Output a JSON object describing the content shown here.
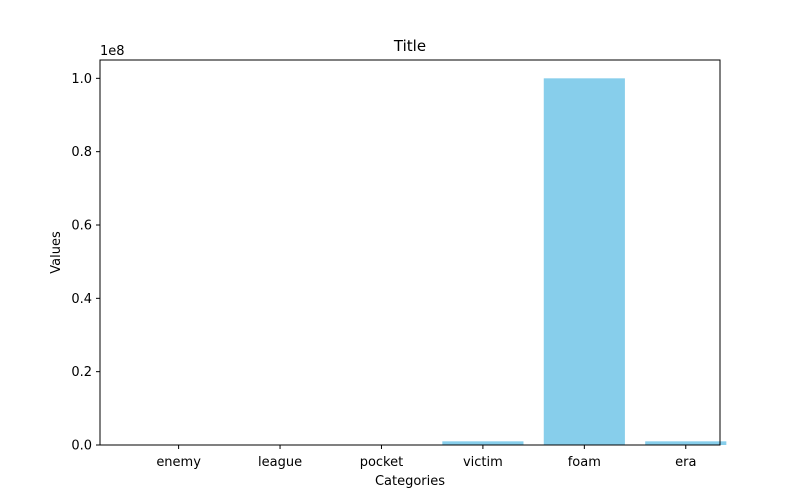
{
  "chart_data": {
    "type": "bar",
    "title": "Title",
    "xlabel": "Categories",
    "ylabel": "Values",
    "offset_text": "1e8",
    "categories": [
      "enemy",
      "league",
      "pocket",
      "victim",
      "foam",
      "era"
    ],
    "values": [
      0,
      0,
      0,
      1000000,
      100000000,
      1000000
    ],
    "ylim": [
      0,
      105000000
    ],
    "y_ticks": [
      0,
      20000000,
      40000000,
      60000000,
      80000000,
      100000000
    ],
    "y_tick_labels": [
      "0.0",
      "0.2",
      "0.4",
      "0.6",
      "0.8",
      "1.0"
    ],
    "bar_color": "#87ceeb",
    "grid": false,
    "legend": "none"
  }
}
